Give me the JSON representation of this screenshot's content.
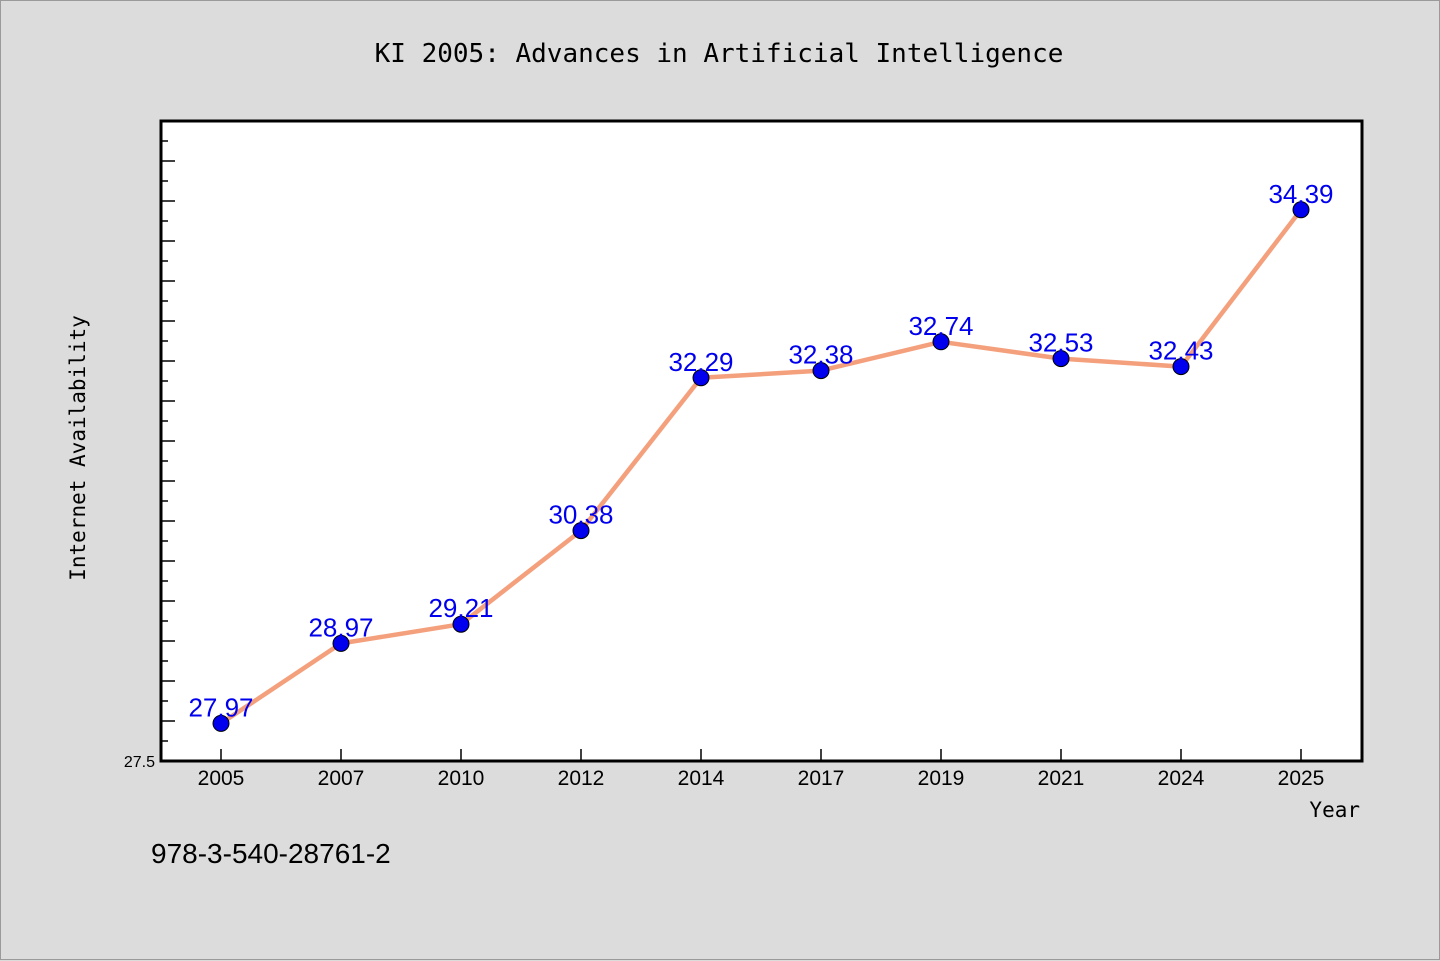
{
  "chart_data": {
    "type": "line",
    "title": "KI 2005: Advances in Artificial Intelligence",
    "xlabel": "Year",
    "ylabel": "Internet Availability",
    "categories": [
      "2005",
      "2007",
      "2010",
      "2012",
      "2014",
      "2017",
      "2019",
      "2021",
      "2024",
      "2025"
    ],
    "series": [
      {
        "values": [
          27.97,
          28.97,
          29.21,
          30.38,
          32.29,
          32.38,
          32.74,
          32.53,
          32.43,
          34.39
        ],
        "labels": [
          "27.97",
          "28.97",
          "29.21",
          "30.38",
          "32.29",
          "32.38",
          "32.74",
          "32.53",
          "32.43",
          "34.39"
        ]
      }
    ],
    "ylim": [
      27.5,
      35.5
    ],
    "ytick_labels": [
      "27.5"
    ],
    "grid": false,
    "colors": {
      "line": "#f4a07c",
      "marker": "#0000ee",
      "data_label": "#0000ee",
      "background": "#dcdcdc",
      "plot_area": "#ffffff"
    }
  },
  "footer": {
    "isbn": "978-3-540-28761-2"
  }
}
